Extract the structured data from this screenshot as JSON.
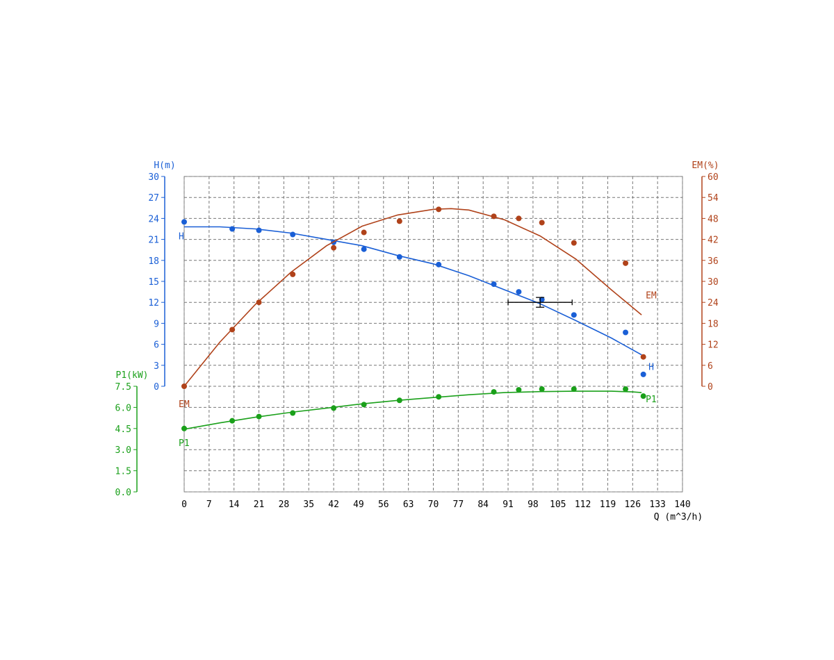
{
  "chart_data": {
    "type": "line",
    "colors": {
      "H": "#1a5fd6",
      "EM": "#b0421a",
      "P1": "#1aa01a",
      "axis": "#000000"
    },
    "x_axis": {
      "label": "Q (m^3/h)",
      "range": [
        0,
        140
      ],
      "ticks": [
        "0",
        "7",
        "14",
        "21",
        "28",
        "35",
        "42",
        "49",
        "56",
        "63",
        "70",
        "77",
        "84",
        "91",
        "98",
        "105",
        "112",
        "119",
        "126",
        "133",
        "140"
      ]
    },
    "y_axes": {
      "H": {
        "label": "H(m)",
        "range": [
          0,
          30
        ],
        "ticks": [
          "0",
          "3",
          "6",
          "9",
          "12",
          "15",
          "18",
          "21",
          "24",
          "27",
          "30"
        ]
      },
      "EM": {
        "label": "EM(%)",
        "range": [
          0,
          60
        ],
        "ticks": [
          "0",
          "6",
          "12",
          "18",
          "24",
          "30",
          "36",
          "42",
          "48",
          "54",
          "60"
        ]
      },
      "P1": {
        "label": "P1(kW)",
        "range": [
          0,
          7.5
        ],
        "ticks": [
          "0.0",
          "1.5",
          "3.0",
          "4.5",
          "6.0",
          "7.5"
        ]
      }
    },
    "series": [
      {
        "name": "H",
        "axis": "H",
        "points": [
          [
            0,
            23.5
          ],
          [
            13.5,
            22.5
          ],
          [
            21,
            22.3
          ],
          [
            30.5,
            21.7
          ],
          [
            42,
            20.6
          ],
          [
            50.5,
            19.6
          ],
          [
            60.5,
            18.5
          ],
          [
            71.5,
            17.4
          ],
          [
            87,
            14.6
          ],
          [
            94,
            13.5
          ],
          [
            100.5,
            12.4
          ],
          [
            109.5,
            10.2
          ],
          [
            124,
            7.7
          ],
          [
            129,
            1.7
          ]
        ],
        "curve": [
          [
            0,
            22.8
          ],
          [
            10,
            22.8
          ],
          [
            20,
            22.5
          ],
          [
            30,
            21.9
          ],
          [
            40,
            21.0
          ],
          [
            50,
            20.1
          ],
          [
            60,
            18.7
          ],
          [
            70,
            17.5
          ],
          [
            80,
            15.8
          ],
          [
            90,
            13.8
          ],
          [
            100,
            11.8
          ],
          [
            110,
            9.4
          ],
          [
            120,
            6.9
          ],
          [
            128.5,
            4.5
          ]
        ],
        "curve_label": "H"
      },
      {
        "name": "EM",
        "axis": "EM",
        "points": [
          [
            0,
            0
          ],
          [
            13.5,
            16.2
          ],
          [
            21,
            24
          ],
          [
            30.5,
            32
          ],
          [
            42,
            39.6
          ],
          [
            50.5,
            44
          ],
          [
            60.5,
            47.2
          ],
          [
            71.5,
            50.6
          ],
          [
            87,
            48.6
          ],
          [
            94,
            48
          ],
          [
            100.5,
            46.8
          ],
          [
            109.5,
            41
          ],
          [
            124,
            35.2
          ],
          [
            129,
            8.4
          ]
        ],
        "curve": [
          [
            0,
            0
          ],
          [
            10,
            12.6
          ],
          [
            20,
            23.4
          ],
          [
            30,
            32.6
          ],
          [
            40,
            40.2
          ],
          [
            50,
            45.8
          ],
          [
            60,
            49.0
          ],
          [
            70,
            50.6
          ],
          [
            75,
            50.8
          ],
          [
            80,
            50.4
          ],
          [
            90,
            47.6
          ],
          [
            100,
            43.0
          ],
          [
            110,
            36.4
          ],
          [
            120,
            27.6
          ],
          [
            128.5,
            20.4
          ]
        ],
        "curve_label": "EM"
      },
      {
        "name": "P1",
        "axis": "P1",
        "points": [
          [
            0,
            4.5
          ],
          [
            13.5,
            5.05
          ],
          [
            21,
            5.35
          ],
          [
            30.5,
            5.6
          ],
          [
            42,
            5.95
          ],
          [
            50.5,
            6.2
          ],
          [
            60.5,
            6.5
          ],
          [
            71.5,
            6.75
          ],
          [
            87,
            7.1
          ],
          [
            94,
            7.25
          ],
          [
            100.5,
            7.3
          ],
          [
            109.5,
            7.3
          ],
          [
            124,
            7.3
          ],
          [
            129,
            6.8
          ]
        ],
        "curve": [
          [
            0,
            4.45
          ],
          [
            10,
            4.9
          ],
          [
            20,
            5.3
          ],
          [
            30,
            5.65
          ],
          [
            40,
            5.95
          ],
          [
            50,
            6.25
          ],
          [
            60,
            6.5
          ],
          [
            70,
            6.7
          ],
          [
            80,
            6.9
          ],
          [
            90,
            7.05
          ],
          [
            100,
            7.12
          ],
          [
            110,
            7.15
          ],
          [
            120,
            7.15
          ],
          [
            126,
            7.1
          ],
          [
            128.5,
            7.05
          ]
        ],
        "curve_label": "P1"
      }
    ],
    "operating_point": {
      "q": 100,
      "h": 12,
      "q_error": [
        91,
        109
      ],
      "h_error": [
        11.3,
        12.7
      ]
    }
  }
}
